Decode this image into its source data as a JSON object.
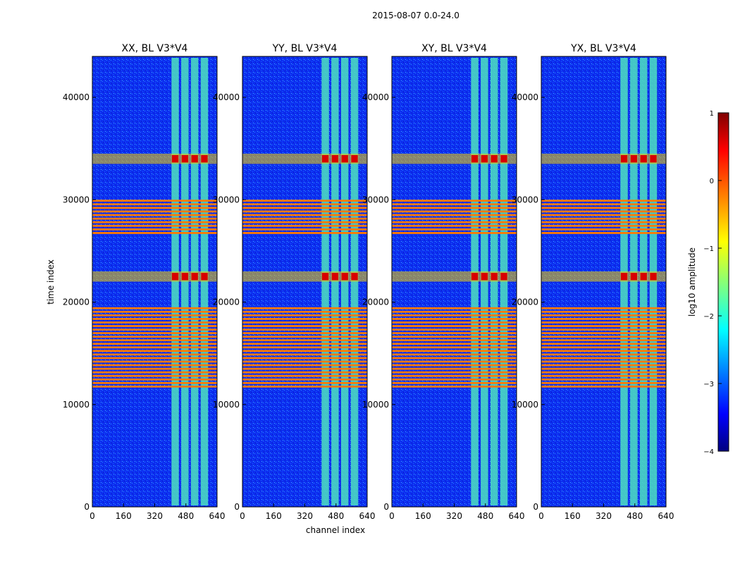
{
  "figure": {
    "title": "2015-08-07 0.0-24.0",
    "xlabel": "channel index",
    "ylabel": "time index"
  },
  "colors": {
    "background_band": "#0a24e6",
    "bad_band": "#ff7a00",
    "spectral_band": "#4fe0c0",
    "peak": "#d80000"
  },
  "colorbar": {
    "label": "log10 amplitude",
    "min": -4,
    "max": 1,
    "ticks": [
      -4,
      -3,
      -2,
      -1,
      0,
      1
    ],
    "tick_labels": [
      "−4",
      "−3",
      "−2",
      "−1",
      "0",
      "1"
    ],
    "colormap": "jet"
  },
  "chart_data": [
    {
      "type": "heatmap",
      "title": "XX, BL V3*V4",
      "xlim": [
        0,
        640
      ],
      "ylim": [
        0,
        44000
      ],
      "xticks": [
        0,
        160,
        320,
        480,
        640
      ],
      "yticks": [
        0,
        10000,
        20000,
        30000,
        40000
      ],
      "bright_channel_range": [
        400,
        600
      ],
      "flagged_time_ranges": [
        [
          26500,
          30000
        ],
        [
          11500,
          19500
        ]
      ],
      "flare_time_ranges": [
        [
          22000,
          23000
        ],
        [
          33500,
          34500
        ]
      ]
    },
    {
      "type": "heatmap",
      "title": "YY, BL V3*V4",
      "xlim": [
        0,
        640
      ],
      "ylim": [
        0,
        44000
      ],
      "xticks": [
        0,
        160,
        320,
        480,
        640
      ],
      "yticks": [
        0,
        10000,
        20000,
        30000,
        40000
      ],
      "bright_channel_range": [
        400,
        600
      ],
      "flagged_time_ranges": [
        [
          26500,
          30000
        ],
        [
          11500,
          19500
        ]
      ],
      "flare_time_ranges": [
        [
          22000,
          23000
        ],
        [
          33500,
          34500
        ]
      ]
    },
    {
      "type": "heatmap",
      "title": "XY, BL V3*V4",
      "xlim": [
        0,
        640
      ],
      "ylim": [
        0,
        44000
      ],
      "xticks": [
        0,
        160,
        320,
        480,
        640
      ],
      "yticks": [
        0,
        10000,
        20000,
        30000,
        40000
      ],
      "bright_channel_range": [
        400,
        600
      ],
      "flagged_time_ranges": [
        [
          26500,
          30000
        ],
        [
          11500,
          19500
        ]
      ],
      "flare_time_ranges": [
        [
          22000,
          23000
        ],
        [
          33500,
          34500
        ]
      ]
    },
    {
      "type": "heatmap",
      "title": "YX, BL V3*V4",
      "xlim": [
        0,
        640
      ],
      "ylim": [
        0,
        44000
      ],
      "xticks": [
        0,
        160,
        320,
        480,
        640
      ],
      "yticks": [
        0,
        10000,
        20000,
        30000,
        40000
      ],
      "bright_channel_range": [
        400,
        600
      ],
      "flagged_time_ranges": [
        [
          26500,
          30000
        ],
        [
          11500,
          19500
        ]
      ],
      "flare_time_ranges": [
        [
          22000,
          23000
        ],
        [
          33500,
          34500
        ]
      ]
    }
  ]
}
